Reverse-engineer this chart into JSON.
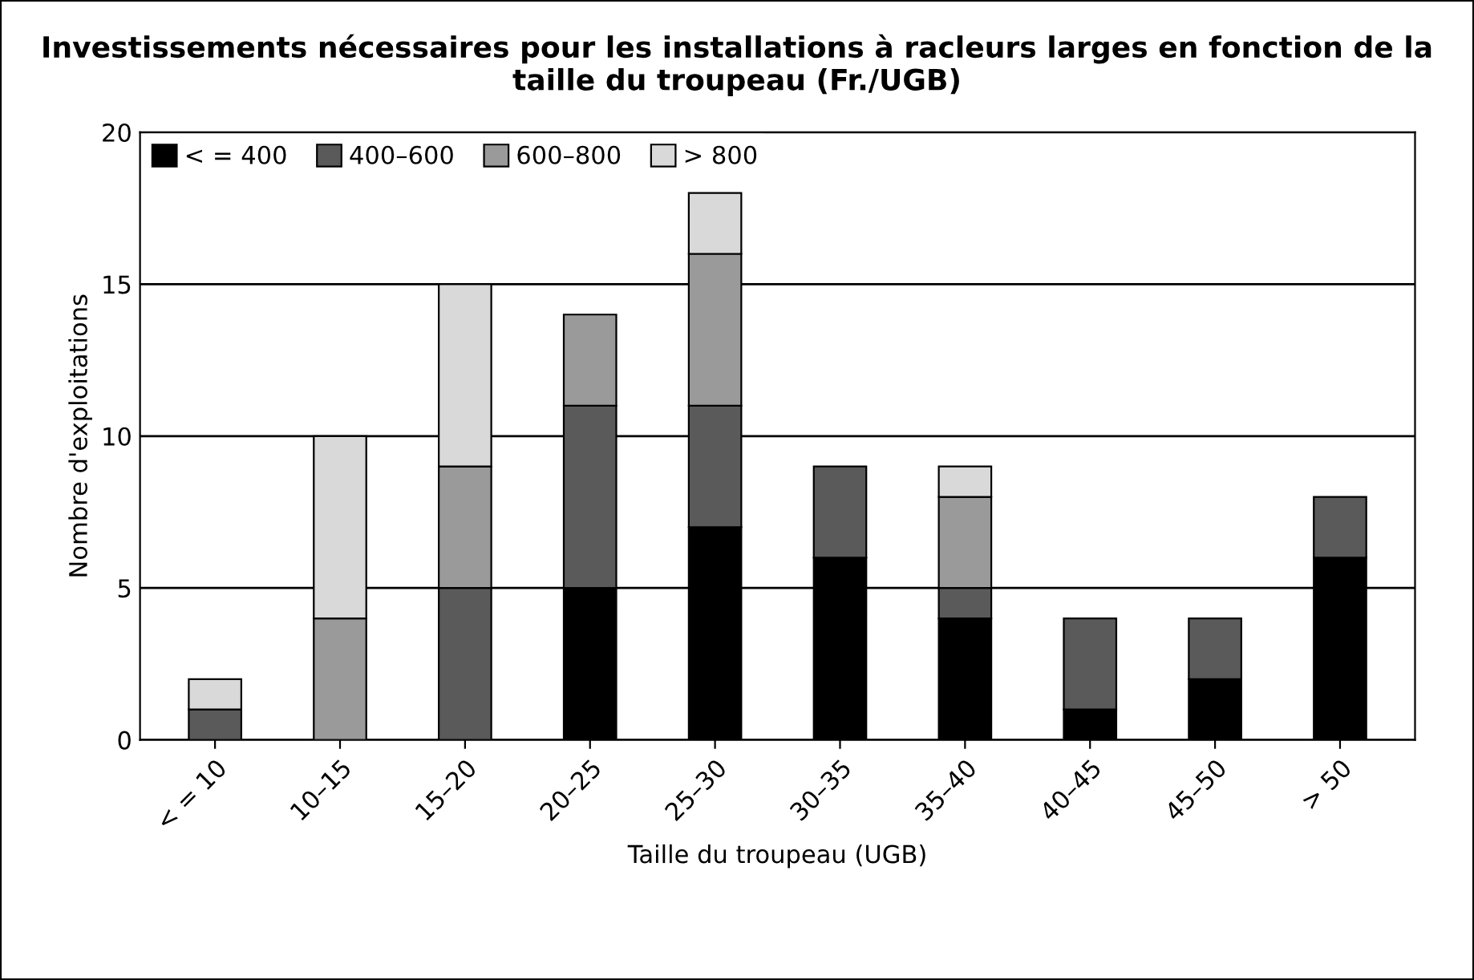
{
  "chart_data": {
    "type": "bar",
    "stacked": true,
    "title": "Investissements nécessaires pour les installations à racleurs larges en fonction de la taille du troupeau (Fr./UGB)",
    "xlabel": "Taille du troupeau (UGB)",
    "ylabel": "Nombre d'exploitations",
    "categories": [
      "< = 10",
      "10–15",
      "15–20",
      "20–25",
      "25–30",
      "30–35",
      "35–40",
      "40–45",
      "45–50",
      "> 50"
    ],
    "series": [
      {
        "name": "< = 400",
        "color": "#000000",
        "values": [
          0,
          0,
          0,
          5,
          7,
          6,
          4,
          1,
          2,
          6
        ]
      },
      {
        "name": "400–600",
        "color": "#5a5a5a",
        "values": [
          1,
          0,
          5,
          6,
          4,
          3,
          1,
          3,
          2,
          2
        ]
      },
      {
        "name": "600–800",
        "color": "#9a9a9a",
        "values": [
          0,
          4,
          4,
          3,
          5,
          0,
          3,
          0,
          0,
          0
        ]
      },
      {
        "name": "> 800",
        "color": "#d9d9d9",
        "values": [
          1,
          6,
          6,
          0,
          2,
          0,
          1,
          0,
          0,
          0
        ]
      }
    ],
    "ylim": [
      0,
      20
    ],
    "yticks": [
      0,
      5,
      10,
      15,
      20
    ],
    "grid": "y",
    "legend": "top left"
  }
}
